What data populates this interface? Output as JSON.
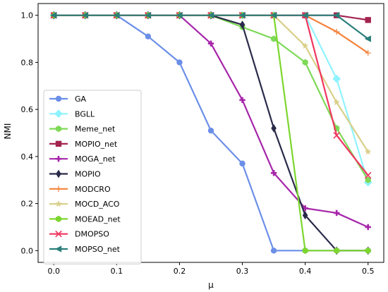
{
  "chart_data": {
    "type": "line",
    "xlabel": "μ",
    "ylabel": "NMI",
    "xlim": [
      -0.025,
      0.525
    ],
    "ylim": [
      -0.05,
      1.05
    ],
    "x_ticks": [
      "0.0",
      "0.1",
      "0.2",
      "0.3",
      "0.4",
      "0.5"
    ],
    "y_ticks": [
      "0.0",
      "0.2",
      "0.4",
      "0.6",
      "0.8",
      "1.0"
    ],
    "grid": false,
    "legend_position": "lower-left",
    "x": [
      0.0,
      0.05,
      0.1,
      0.15,
      0.2,
      0.25,
      0.3,
      0.35,
      0.4,
      0.45,
      0.5
    ],
    "series": [
      {
        "name": "GA",
        "color": "#6b8ee8",
        "marker": "circle",
        "values": [
          1.0,
          1.0,
          1.0,
          0.91,
          0.8,
          0.51,
          0.37,
          0.0,
          0.0,
          0.0,
          0.0
        ]
      },
      {
        "name": "BGLL",
        "color": "#8ff3ff",
        "marker": "diamond",
        "values": [
          1.0,
          1.0,
          1.0,
          1.0,
          1.0,
          1.0,
          1.0,
          1.0,
          1.0,
          0.73,
          0.29
        ]
      },
      {
        "name": "Meme_net",
        "color": "#7ed957",
        "marker": "hexagon",
        "values": [
          1.0,
          1.0,
          1.0,
          1.0,
          1.0,
          1.0,
          0.95,
          0.9,
          0.8,
          0.52,
          0.3
        ]
      },
      {
        "name": "MOPIO_net",
        "color": "#a3234f",
        "marker": "square",
        "values": [
          1.0,
          1.0,
          1.0,
          1.0,
          1.0,
          1.0,
          1.0,
          1.0,
          1.0,
          1.0,
          0.98
        ]
      },
      {
        "name": "MOGA_net",
        "color": "#a626aa",
        "marker": "plus",
        "values": [
          1.0,
          1.0,
          1.0,
          1.0,
          1.0,
          0.88,
          0.64,
          0.33,
          0.18,
          0.16,
          0.1
        ]
      },
      {
        "name": "MOPIO",
        "color": "#2a2a4a",
        "marker": "thin-diamond",
        "values": [
          1.0,
          1.0,
          1.0,
          1.0,
          1.0,
          1.0,
          0.96,
          0.52,
          0.15,
          0.0,
          0.0
        ]
      },
      {
        "name": "MODCRO",
        "color": "#f5813a",
        "marker": "tri-plus",
        "values": [
          1.0,
          1.0,
          1.0,
          1.0,
          1.0,
          1.0,
          1.0,
          1.0,
          1.0,
          0.93,
          0.84
        ]
      },
      {
        "name": "MOCD_ACO",
        "color": "#d9cf8a",
        "marker": "star",
        "values": [
          1.0,
          1.0,
          1.0,
          1.0,
          1.0,
          1.0,
          1.0,
          1.0,
          0.87,
          0.63,
          0.42
        ]
      },
      {
        "name": "MOEAD_net",
        "color": "#7dd62f",
        "marker": "hexagon",
        "values": [
          1.0,
          1.0,
          1.0,
          1.0,
          1.0,
          1.0,
          1.0,
          1.0,
          0.0,
          0.0,
          0.0
        ]
      },
      {
        "name": "DMOPSO",
        "color": "#f0365f",
        "marker": "x",
        "values": [
          1.0,
          1.0,
          1.0,
          1.0,
          1.0,
          1.0,
          1.0,
          1.0,
          1.0,
          0.49,
          0.32
        ]
      },
      {
        "name": "MOPSO_net",
        "color": "#2a7f7a",
        "marker": "triangle-left",
        "values": [
          1.0,
          1.0,
          1.0,
          1.0,
          1.0,
          1.0,
          1.0,
          1.0,
          1.0,
          1.0,
          0.9
        ]
      }
    ]
  }
}
